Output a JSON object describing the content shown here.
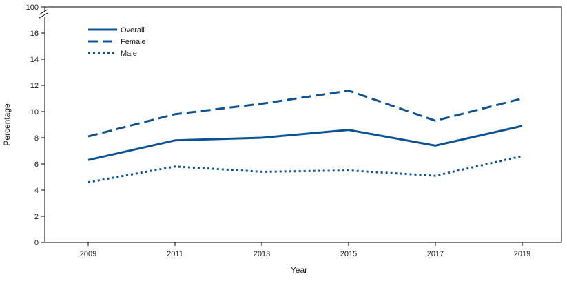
{
  "chart_data": {
    "type": "line",
    "xlabel": "Year",
    "ylabel": "Percentage",
    "x": [
      2009,
      2011,
      2013,
      2015,
      2017,
      2019
    ],
    "yticks": [
      0,
      2,
      4,
      6,
      8,
      10,
      12,
      14,
      16,
      100
    ],
    "ylim": [
      0,
      17
    ],
    "y_axis_break": {
      "above": 16,
      "top_label_value": 100
    },
    "legend_position": "top-left",
    "grid": false,
    "series": [
      {
        "name": "Overall",
        "style": "solid",
        "color": "#0b5394",
        "values": [
          6.3,
          7.8,
          8.0,
          8.6,
          7.4,
          8.9
        ]
      },
      {
        "name": "Female",
        "style": "dashed",
        "color": "#0b5394",
        "values": [
          8.1,
          9.8,
          10.6,
          11.6,
          9.3,
          11.0
        ]
      },
      {
        "name": "Male",
        "style": "dotted",
        "color": "#0b5394",
        "values": [
          4.6,
          5.8,
          5.4,
          5.5,
          5.1,
          6.6
        ]
      }
    ]
  }
}
